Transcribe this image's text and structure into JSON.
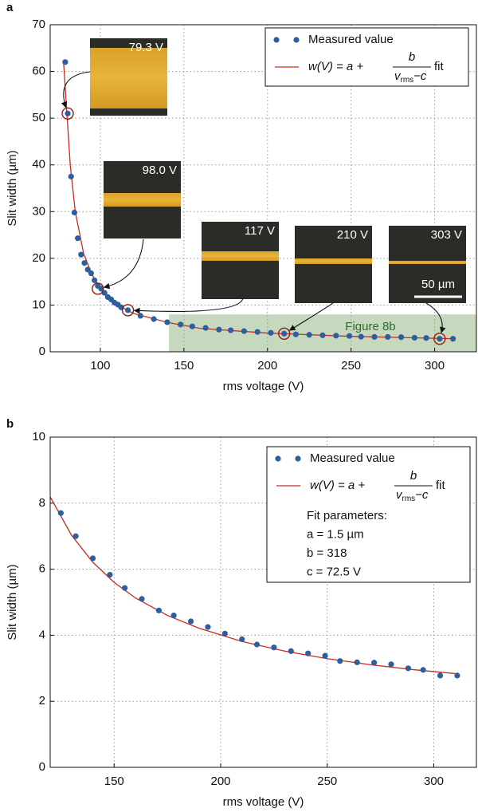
{
  "chart_data": [
    {
      "type": "scatter",
      "panel_label": "a",
      "xlabel": "rms voltage (V)",
      "ylabel": "Slit width (µm)",
      "xlim": [
        70,
        325
      ],
      "ylim": [
        0,
        70
      ],
      "xticks": [
        100,
        150,
        200,
        250,
        300
      ],
      "yticks": [
        0,
        10,
        20,
        30,
        40,
        50,
        60,
        70
      ],
      "grid": true,
      "series": [
        {
          "name": "Measured value",
          "color": "#2c5f9e",
          "marker": "circle",
          "x": [
            79,
            80.5,
            82.5,
            84.5,
            86.5,
            88.5,
            90.5,
            92.5,
            94.5,
            96.5,
            98.5,
            100.5,
            102.5,
            104.5,
            106.5,
            108.5,
            110.5,
            112.5,
            116.5,
            124,
            132,
            140,
            148,
            155,
            163,
            171,
            178,
            186,
            194,
            202,
            210,
            217,
            225,
            233,
            241,
            249,
            256,
            264,
            272,
            280,
            288,
            295,
            303,
            311
          ],
          "values": [
            62,
            51,
            37.5,
            29.8,
            24.3,
            20.8,
            19,
            17.6,
            16.8,
            15.3,
            14.1,
            13.5,
            12.6,
            11.7,
            11.2,
            10.5,
            10.1,
            9.5,
            8.9,
            7.7,
            7.0,
            6.33,
            5.83,
            5.43,
            5.1,
            4.75,
            4.6,
            4.42,
            4.25,
            4.05,
            3.88,
            3.72,
            3.63,
            3.52,
            3.45,
            3.38,
            3.22,
            3.18,
            3.17,
            3.12,
            3.0,
            2.95,
            2.78,
            2.78
          ]
        },
        {
          "name": {
            "lhs": "w(V) = a +",
            "numerator": "b",
            "denominator": "v",
            "denominator_sub": "rms",
            "denominator_tail": "−c",
            "rhs": "fit"
          },
          "color": "#c62d1f",
          "marker": "line",
          "x": [
            78,
            80,
            82,
            85,
            90,
            95,
            100,
            110,
            120,
            140,
            160,
            200,
            250,
            310
          ],
          "values": [
            62,
            51,
            40,
            30,
            21,
            16.5,
            13.5,
            10,
            8.2,
            6.3,
            5.0,
            4.0,
            3.3,
            2.8
          ]
        }
      ],
      "highlight": {
        "label": "Figure 8b",
        "x0": 141,
        "y1": 8
      },
      "annotations": [
        {
          "label": "79.3 V",
          "x": 80.5,
          "y": 51
        },
        {
          "label": "98.0 V",
          "x": 98.5,
          "y": 13.5
        },
        {
          "label": "117 V",
          "x": 116.5,
          "y": 8.9
        },
        {
          "label": "210 V",
          "x": 210,
          "y": 3.88
        },
        {
          "label": "303 V",
          "x": 303,
          "y": 2.78
        }
      ],
      "scale_bar_label": "50 µm"
    },
    {
      "type": "scatter",
      "panel_label": "b",
      "xlabel": "rms voltage (V)",
      "ylabel": "Slit width (µm)",
      "xlim": [
        120,
        320
      ],
      "ylim": [
        0,
        10
      ],
      "xticks": [
        150,
        200,
        250,
        300
      ],
      "yticks": [
        0,
        2,
        4,
        6,
        8,
        10
      ],
      "grid": true,
      "series": [
        {
          "name": "Measured value",
          "color": "#2c5f9e",
          "marker": "circle",
          "x": [
            125,
            132,
            140,
            148,
            155,
            163,
            171,
            178,
            186,
            194,
            202,
            210,
            217,
            225,
            233,
            241,
            249,
            256,
            264,
            272,
            280,
            288,
            295,
            303,
            311
          ],
          "values": [
            7.7,
            7.0,
            6.33,
            5.83,
            5.43,
            5.1,
            4.75,
            4.6,
            4.42,
            4.25,
            4.05,
            3.88,
            3.72,
            3.63,
            3.52,
            3.45,
            3.38,
            3.22,
            3.18,
            3.17,
            3.12,
            3.0,
            2.95,
            2.78,
            2.78
          ]
        },
        {
          "name": {
            "lhs": "w(V) = a +",
            "numerator": "b",
            "denominator": "v",
            "denominator_sub": "rms",
            "denominator_tail": "−c",
            "rhs": "fit"
          },
          "color": "#c62d1f",
          "marker": "line",
          "x": [
            120,
            130,
            140,
            150,
            160,
            175,
            190,
            210,
            230,
            250,
            270,
            290,
            310
          ],
          "values": [
            8.19,
            7.03,
            6.21,
            5.6,
            5.13,
            4.6,
            4.21,
            3.81,
            3.52,
            3.29,
            3.11,
            2.96,
            2.84
          ]
        }
      ],
      "legend_notes": [
        "Fit parameters:",
        "a = 1.5 µm",
        "b = 318",
        "c = 72.5 V"
      ]
    }
  ]
}
